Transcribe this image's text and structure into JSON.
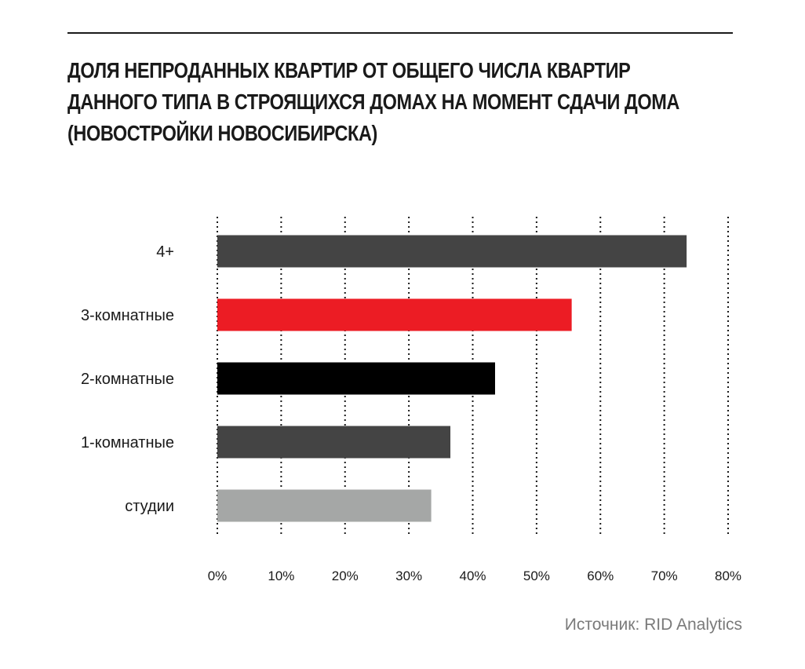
{
  "chart_data": {
    "type": "bar",
    "orientation": "horizontal",
    "title_lines": [
      "ДОЛЯ НЕПРОДАННЫХ КВАРТИР ОТ ОБЩЕГО ЧИСЛА КВАРТИР",
      "ДАННОГО ТИПА В СТРОЯЩИХСЯ ДОМАХ НА МОМЕНТ СДАЧИ ДОМА",
      "(НОВОСТРОЙКИ НОВОСИБИРСКА)"
    ],
    "categories": [
      "4+",
      "3-комнатные",
      "2-комнатные",
      "1-комнатные",
      "студии"
    ],
    "values": [
      73.5,
      55.5,
      43.5,
      36.5,
      33.5
    ],
    "colors": [
      "#444444",
      "#ec1c24",
      "#000000",
      "#444444",
      "#a5a7a6"
    ],
    "xlim": [
      0,
      80
    ],
    "xticks": [
      0,
      10,
      20,
      30,
      40,
      50,
      60,
      70,
      80
    ],
    "xtick_labels": [
      "0%",
      "10%",
      "20%",
      "30%",
      "40%",
      "50%",
      "60%",
      "70%",
      "80%"
    ],
    "grid": "vertical dotted",
    "xlabel": "",
    "ylabel": "",
    "source": "Источник: RID Analytics"
  }
}
